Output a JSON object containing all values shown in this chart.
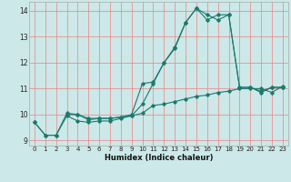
{
  "title": "",
  "xlabel": "Humidex (Indice chaleur)",
  "ylabel": "",
  "bg_color": "#cce8e8",
  "line_color": "#1a7a6e",
  "grid_color_major": "#f08080",
  "grid_color_minor": "#d8f0f0",
  "xlim": [
    -0.5,
    23.5
  ],
  "ylim": [
    8.8,
    14.35
  ],
  "yticks": [
    9,
    10,
    11,
    12,
    13,
    14
  ],
  "xticks": [
    0,
    1,
    2,
    3,
    4,
    5,
    6,
    7,
    8,
    9,
    10,
    11,
    12,
    13,
    14,
    15,
    16,
    17,
    18,
    19,
    20,
    21,
    22,
    23
  ],
  "line1_x": [
    0,
    1,
    2,
    3,
    4,
    5,
    6,
    7,
    8,
    9,
    10,
    11,
    12,
    13,
    14,
    15,
    16,
    17,
    18,
    19,
    20,
    21,
    22,
    23
  ],
  "line1_y": [
    9.7,
    9.2,
    9.2,
    10.05,
    10.0,
    9.8,
    9.85,
    9.85,
    9.9,
    9.95,
    10.4,
    11.2,
    12.0,
    12.6,
    13.55,
    14.1,
    13.85,
    13.65,
    13.85,
    11.05,
    11.05,
    10.85,
    11.05,
    11.05
  ],
  "line2_x": [
    3,
    4,
    5,
    6,
    7,
    8,
    9,
    10,
    11,
    12,
    13,
    14,
    15,
    16,
    17,
    18,
    19,
    20,
    21,
    22,
    23
  ],
  "line2_y": [
    10.0,
    10.0,
    9.85,
    9.85,
    9.85,
    9.9,
    10.0,
    11.2,
    11.25,
    12.0,
    12.55,
    13.55,
    14.1,
    13.65,
    13.85,
    13.85,
    11.05,
    11.05,
    10.9,
    11.05,
    11.05
  ],
  "line3_x": [
    0,
    1,
    2,
    3,
    4,
    5,
    6,
    7,
    8,
    9,
    10,
    11,
    12,
    13,
    14,
    15,
    16,
    17,
    18,
    19,
    20,
    21,
    22,
    23
  ],
  "line3_y": [
    9.7,
    9.2,
    9.2,
    9.95,
    9.75,
    9.7,
    9.75,
    9.75,
    9.85,
    9.95,
    10.05,
    10.35,
    10.4,
    10.5,
    10.6,
    10.7,
    10.75,
    10.85,
    10.9,
    11.0,
    11.0,
    11.0,
    10.85,
    11.1
  ],
  "label_fontsize": 5.5,
  "xlabel_fontsize": 6.0,
  "tick_fontsize": 5.0
}
